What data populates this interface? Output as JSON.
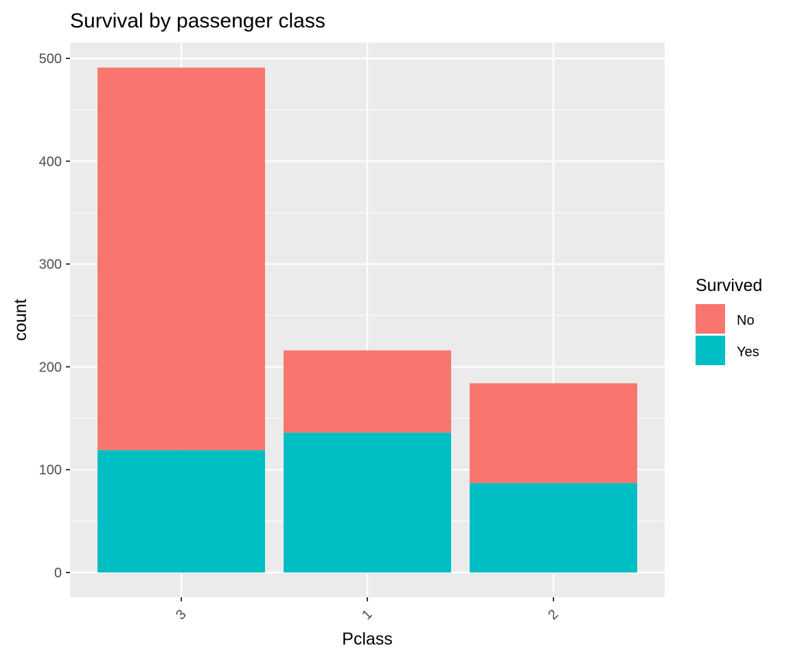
{
  "chart_data": {
    "type": "bar",
    "stacked": true,
    "title": "Survival by passenger class",
    "xlabel": "Pclass",
    "ylabel": "count",
    "categories": [
      "3",
      "1",
      "2"
    ],
    "series": [
      {
        "name": "No",
        "values": [
          372,
          80,
          97
        ],
        "color": "#F8766D"
      },
      {
        "name": "Yes",
        "values": [
          119,
          136,
          87
        ],
        "color": "#00BFC4"
      }
    ],
    "ylim": [
      0,
      525
    ],
    "yticks": [
      0,
      100,
      200,
      300,
      400,
      500
    ],
    "legend": {
      "title": "Survived",
      "position": "right"
    },
    "grid": true,
    "panel_color": "#EBEBEB",
    "x_tick_rotation_deg": -45
  }
}
